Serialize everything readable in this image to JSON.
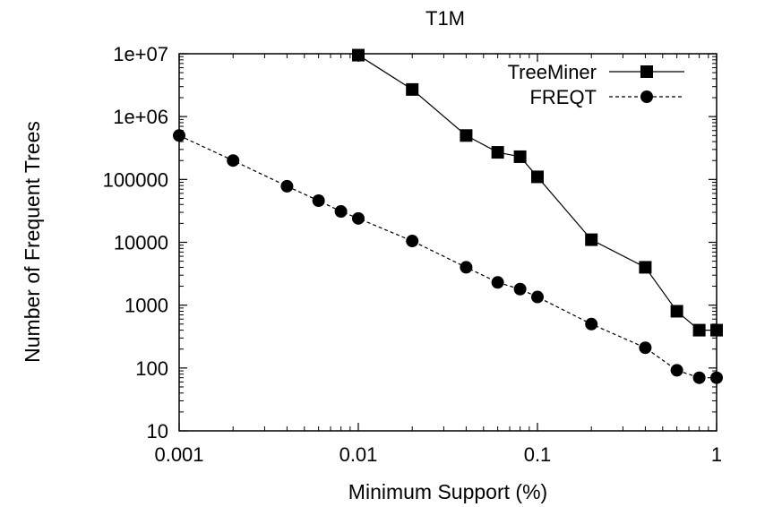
{
  "chart_data": {
    "type": "line",
    "title": "T1M",
    "xlabel": "Minimum Support (%)",
    "ylabel": "Number of Frequent Trees",
    "xscale": "log",
    "yscale": "log",
    "xlim": [
      0.001,
      1
    ],
    "ylim": [
      10,
      10000000
    ],
    "x_ticks": [
      {
        "value": 0.001,
        "label": "0.001"
      },
      {
        "value": 0.01,
        "label": "0.01"
      },
      {
        "value": 0.1,
        "label": "0.1"
      },
      {
        "value": 1,
        "label": "1"
      }
    ],
    "y_ticks": [
      {
        "value": 10,
        "label": "10"
      },
      {
        "value": 100,
        "label": "100"
      },
      {
        "value": 1000,
        "label": "1000"
      },
      {
        "value": 10000,
        "label": "10000"
      },
      {
        "value": 100000,
        "label": "100000"
      },
      {
        "value": 1000000,
        "label": "1e+06"
      },
      {
        "value": 10000000,
        "label": "1e+07"
      }
    ],
    "legend_position": "top-right",
    "grid": false,
    "series": [
      {
        "name": "TreeMiner",
        "marker": "square",
        "line_style": "solid",
        "color": "#000000",
        "x": [
          0.01,
          0.02,
          0.04,
          0.06,
          0.08,
          0.1,
          0.2,
          0.4,
          0.6,
          0.8,
          1.0
        ],
        "y": [
          9500000,
          2700000,
          500000,
          270000,
          230000,
          110000,
          11000,
          4000,
          800,
          400,
          400
        ]
      },
      {
        "name": "FREQT",
        "marker": "circle",
        "line_style": "dashed",
        "color": "#000000",
        "x": [
          0.001,
          0.002,
          0.004,
          0.006,
          0.008,
          0.01,
          0.02,
          0.04,
          0.06,
          0.08,
          0.1,
          0.2,
          0.4,
          0.6,
          0.8,
          1.0
        ],
        "y": [
          500000,
          200000,
          78000,
          46000,
          31000,
          24000,
          10500,
          4000,
          2300,
          1800,
          1350,
          500,
          210,
          92,
          70,
          70
        ]
      }
    ]
  }
}
